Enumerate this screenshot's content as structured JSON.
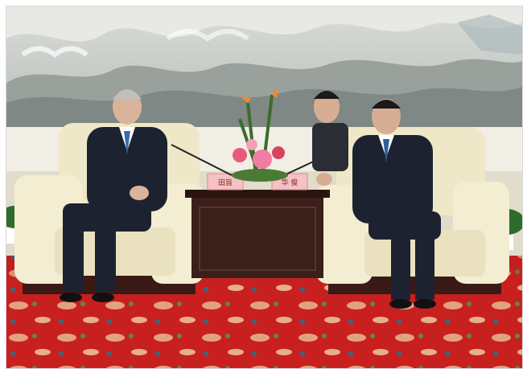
{
  "photo": {
    "nameplates": {
      "left": "田旨",
      "right": "华 俊"
    },
    "colors": {
      "wall": "#f1eee6",
      "mural_sky": "#c9cdc8",
      "mural_mountain": "#7f8884",
      "sofa": "#efe8c8",
      "sofa_wood": "#3a1a16",
      "carpet": "#c8201f",
      "carpet_pattern": "#e9c9a0",
      "suit": "#1d2231",
      "flowers": "#e95a7a"
    }
  }
}
